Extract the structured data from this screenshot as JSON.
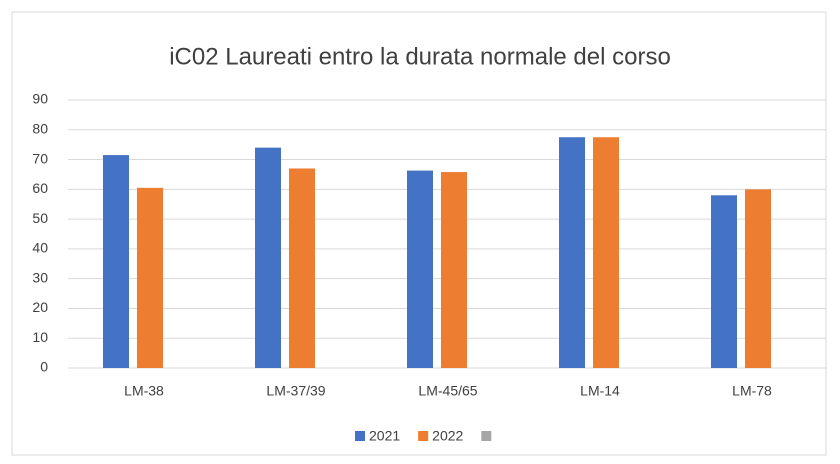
{
  "chart_data": {
    "type": "bar",
    "title": "iC02 Laureati entro la durata normale del corso",
    "categories": [
      "LM-38",
      "LM-37/39",
      "LM-45/65",
      "LM-14",
      "LM-78"
    ],
    "series": [
      {
        "name": "2021",
        "color": "#4472c4",
        "values": [
          71.5,
          74,
          66.3,
          77.5,
          58
        ]
      },
      {
        "name": "2022",
        "color": "#ed7d31",
        "values": [
          60.5,
          67,
          65.8,
          77.5,
          60
        ]
      },
      {
        "color": "#a5a5a5",
        "values": [
          null,
          null,
          null,
          null,
          null
        ]
      }
    ],
    "ylim": [
      0,
      90
    ],
    "yticks": [
      0,
      10,
      20,
      30,
      40,
      50,
      60,
      70,
      80,
      90
    ],
    "grid": true,
    "legend": "bottom"
  }
}
